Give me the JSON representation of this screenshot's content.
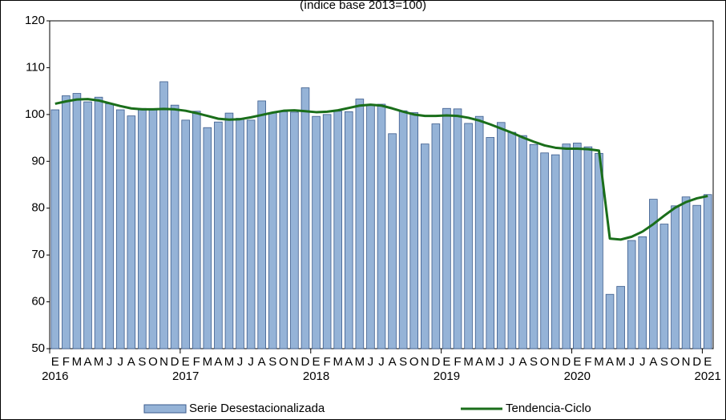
{
  "chart_data": {
    "type": "bar_line",
    "subtitle": "(índice base 2013=100)",
    "categories": [
      "E",
      "F",
      "M",
      "A",
      "M",
      "J",
      "J",
      "A",
      "S",
      "O",
      "N",
      "D",
      "E",
      "F",
      "M",
      "A",
      "M",
      "J",
      "J",
      "A",
      "S",
      "O",
      "N",
      "D",
      "E",
      "F",
      "M",
      "A",
      "M",
      "J",
      "J",
      "A",
      "S",
      "O",
      "N",
      "D",
      "E",
      "F",
      "M",
      "A",
      "M",
      "J",
      "J",
      "A",
      "S",
      "O",
      "N",
      "D",
      "E",
      "F",
      "M",
      "A",
      "M",
      "J",
      "J",
      "A",
      "S",
      "O",
      "N",
      "D",
      "E"
    ],
    "years": [
      "2016",
      "2017",
      "2018",
      "2019",
      "2020",
      "2021"
    ],
    "series": [
      {
        "name": "Serie Desestacionalizada",
        "type": "bar",
        "color": "#95b3d7",
        "stroke": "#3b5b8c",
        "values": [
          101,
          104,
          104.5,
          102.7,
          103.7,
          102.3,
          101,
          99.7,
          101.3,
          101.2,
          107,
          102,
          98.8,
          100.7,
          97.2,
          98.4,
          100.3,
          99.2,
          98.8,
          102.9,
          100.3,
          100.6,
          100.5,
          105.7,
          99.6,
          100,
          100.7,
          100.6,
          103.3,
          102,
          102.2,
          95.9,
          100.8,
          100.4,
          93.7,
          98,
          101.3,
          101.2,
          98.1,
          99.6,
          95.1,
          98.3,
          96.2,
          95.5,
          93.6,
          91.8,
          91.4,
          93.7,
          93.9,
          93.1,
          91.7,
          61.6,
          63.3,
          73.1,
          73.9,
          81.9,
          76.6,
          80.5,
          82.4,
          80.6,
          82.9
        ]
      },
      {
        "name": "Tendencia-Ciclo",
        "type": "line",
        "color": "#1a6e1a",
        "values": [
          102.3,
          102.8,
          103.2,
          103.3,
          103,
          102.4,
          101.8,
          101.3,
          101.1,
          101.1,
          101.2,
          101.1,
          100.8,
          100.3,
          99.7,
          99.1,
          98.9,
          99,
          99.4,
          99.9,
          100.4,
          100.8,
          100.9,
          100.7,
          100.5,
          100.6,
          100.9,
          101.4,
          101.9,
          102.1,
          101.9,
          101.3,
          100.6,
          100,
          99.7,
          99.7,
          99.8,
          99.7,
          99.3,
          98.7,
          97.9,
          97,
          96.1,
          95.1,
          94.2,
          93.4,
          92.9,
          92.7,
          92.7,
          92.6,
          92.3,
          73.5,
          73.3,
          73.9,
          75,
          76.6,
          78.4,
          80.1,
          81.3,
          82.1,
          82.6
        ]
      }
    ],
    "ylim": [
      50,
      120
    ],
    "yticks": [
      50,
      60,
      70,
      80,
      90,
      100,
      110,
      120
    ],
    "grid": false,
    "legend": "bottom"
  }
}
